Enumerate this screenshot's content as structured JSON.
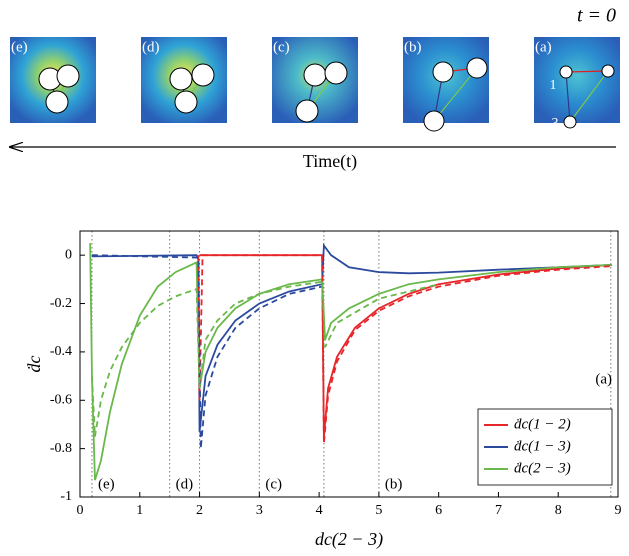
{
  "panel": {
    "time_label": "t = 0",
    "arrow_label": "Time(t)",
    "panels": [
      "(e)",
      "(d)",
      "(c)",
      "(b)",
      "(a)"
    ],
    "particle_labels": [
      "1",
      "2",
      "3"
    ]
  },
  "chart_data": {
    "type": "line",
    "xlabel": "dc(2 − 3)",
    "ylabel": "ḋc",
    "xlim": [
      0,
      9
    ],
    "ylim": [
      -1,
      0.1
    ],
    "xticks": [
      0,
      1,
      2,
      3,
      4,
      5,
      6,
      7,
      8,
      9
    ],
    "yticks": [
      -1,
      -0.8,
      -0.6,
      -0.4,
      -0.2,
      0
    ],
    "vlines": [
      0.2,
      1.5,
      2,
      3,
      4.08,
      5,
      8.88
    ],
    "region_labels": [
      "(e)",
      "(d)",
      "(c)",
      "(b)"
    ],
    "annotation": "(a)",
    "legend": "lower right",
    "series": [
      {
        "name": "ḋc(1 − 2)",
        "color": "#e8262a",
        "dash": false,
        "x": [
          2.0,
          4.05,
          4.08,
          4.15,
          4.3,
          4.6,
          5,
          5.5,
          6,
          6.5,
          7,
          8,
          8.9
        ],
        "values": [
          0,
          0,
          -0.75,
          -0.55,
          -0.42,
          -0.3,
          -0.22,
          -0.16,
          -0.12,
          -0.1,
          -0.08,
          -0.055,
          -0.04
        ]
      },
      {
        "name": "ḋc(1 − 3)",
        "color": "#2b4a9e",
        "dash": false,
        "x": [
          0.2,
          1.95,
          1.98,
          2.0,
          2.1,
          2.3,
          2.6,
          3,
          3.5,
          4.05,
          4.08,
          4.2,
          4.5,
          5,
          5.5,
          6,
          7,
          8,
          8.9
        ],
        "values": [
          -0.005,
          0,
          -0.02,
          -0.73,
          -0.5,
          -0.37,
          -0.27,
          -0.2,
          -0.15,
          -0.12,
          0.04,
          0,
          -0.05,
          -0.07,
          -0.075,
          -0.072,
          -0.06,
          -0.05,
          -0.04
        ]
      },
      {
        "name": "ḋc(2 − 3)",
        "color": "#6ab84a",
        "dash": false,
        "x": [
          0.17,
          0.2,
          0.25,
          0.35,
          0.5,
          0.7,
          1.0,
          1.3,
          1.6,
          1.95,
          2.0,
          2.1,
          2.3,
          2.6,
          3,
          3.5,
          4.05,
          4.1,
          4.2,
          4.5,
          5,
          5.5,
          6,
          7,
          8,
          8.9
        ],
        "values": [
          0.05,
          -0.5,
          -0.93,
          -0.85,
          -0.65,
          -0.45,
          -0.25,
          -0.13,
          -0.07,
          -0.03,
          -0.55,
          -0.4,
          -0.3,
          -0.22,
          -0.16,
          -0.12,
          -0.1,
          -0.35,
          -0.28,
          -0.22,
          -0.16,
          -0.12,
          -0.1,
          -0.07,
          -0.05,
          -0.04
        ]
      },
      {
        "color": "#e8262a",
        "dash": true,
        "x": [
          1.98,
          2.0,
          2.05,
          4.05,
          4.08,
          4.15,
          4.3,
          4.6,
          5,
          5.5,
          6,
          7,
          8,
          8.9
        ],
        "values": [
          0,
          -0.6,
          0,
          0,
          -0.78,
          -0.58,
          -0.44,
          -0.31,
          -0.23,
          -0.17,
          -0.13,
          -0.085,
          -0.06,
          -0.045
        ]
      },
      {
        "color": "#2b4a9e",
        "dash": true,
        "x": [
          0.2,
          1.98,
          2.02,
          2.1,
          2.3,
          2.6,
          3,
          3.5,
          4.05
        ],
        "values": [
          0,
          -0.01,
          -0.8,
          -0.58,
          -0.42,
          -0.3,
          -0.22,
          -0.16,
          -0.13
        ]
      },
      {
        "color": "#6ab84a",
        "dash": true,
        "x": [
          0.2,
          0.25,
          0.35,
          0.5,
          0.7,
          1.0,
          1.3,
          1.6,
          1.95,
          2.0,
          2.1,
          2.3,
          2.6,
          3,
          3.5,
          4.05,
          4.1,
          4.3,
          5,
          6
        ],
        "values": [
          -0.5,
          -0.75,
          -0.6,
          -0.48,
          -0.38,
          -0.28,
          -0.21,
          -0.17,
          -0.14,
          -0.55,
          -0.35,
          -0.27,
          -0.2,
          -0.16,
          -0.13,
          -0.11,
          -0.38,
          -0.28,
          -0.18,
          -0.12
        ]
      }
    ]
  }
}
